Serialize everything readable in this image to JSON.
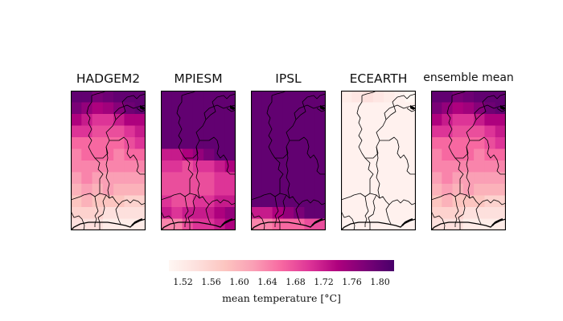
{
  "panels": [
    {
      "title": "HADGEM2",
      "levels": [
        [
          1.8,
          1.8,
          1.78,
          1.79,
          1.8,
          1.8,
          1.8
        ],
        [
          1.78,
          1.76,
          1.74,
          1.75,
          1.77,
          1.79,
          1.8
        ],
        [
          1.74,
          1.72,
          1.7,
          1.7,
          1.72,
          1.74,
          1.74
        ],
        [
          1.7,
          1.7,
          1.68,
          1.68,
          1.68,
          1.7,
          1.72
        ],
        [
          1.66,
          1.66,
          1.66,
          1.66,
          1.66,
          1.68,
          1.7
        ],
        [
          1.64,
          1.66,
          1.66,
          1.66,
          1.64,
          1.66,
          1.66
        ],
        [
          1.64,
          1.64,
          1.64,
          1.64,
          1.64,
          1.64,
          1.64
        ],
        [
          1.62,
          1.64,
          1.62,
          1.62,
          1.62,
          1.62,
          1.62
        ],
        [
          1.6,
          1.62,
          1.6,
          1.62,
          1.6,
          1.6,
          1.6
        ],
        [
          1.58,
          1.6,
          1.58,
          1.58,
          1.58,
          1.56,
          1.56
        ],
        [
          1.56,
          1.56,
          1.56,
          1.54,
          1.54,
          1.54,
          1.54
        ],
        [
          1.54,
          1.54,
          1.54,
          1.52,
          1.52,
          1.52,
          1.52
        ]
      ]
    },
    {
      "title": "MPIESM",
      "levels": [
        [
          1.8,
          1.8,
          1.8,
          1.8,
          1.8,
          1.8,
          1.8
        ],
        [
          1.8,
          1.8,
          1.8,
          1.8,
          1.8,
          1.8,
          1.8
        ],
        [
          1.8,
          1.8,
          1.8,
          1.8,
          1.8,
          1.8,
          1.8
        ],
        [
          1.8,
          1.8,
          1.8,
          1.8,
          1.8,
          1.8,
          1.8
        ],
        [
          1.8,
          1.8,
          1.8,
          1.8,
          1.8,
          1.8,
          1.8
        ],
        [
          1.72,
          1.72,
          1.74,
          1.76,
          1.78,
          1.8,
          1.8
        ],
        [
          1.7,
          1.7,
          1.68,
          1.7,
          1.7,
          1.72,
          1.74
        ],
        [
          1.68,
          1.68,
          1.68,
          1.68,
          1.68,
          1.7,
          1.7
        ],
        [
          1.68,
          1.68,
          1.68,
          1.68,
          1.68,
          1.7,
          1.7
        ],
        [
          1.7,
          1.68,
          1.68,
          1.7,
          1.7,
          1.72,
          1.72
        ],
        [
          1.72,
          1.7,
          1.72,
          1.72,
          1.72,
          1.74,
          1.76
        ],
        [
          1.64,
          1.64,
          1.68,
          1.7,
          1.7,
          1.72,
          1.74
        ]
      ]
    },
    {
      "title": "IPSL",
      "levels": [
        [
          1.8,
          1.8,
          1.8,
          1.8,
          1.8,
          1.8,
          1.8
        ],
        [
          1.8,
          1.8,
          1.8,
          1.8,
          1.8,
          1.8,
          1.8
        ],
        [
          1.8,
          1.8,
          1.8,
          1.8,
          1.8,
          1.8,
          1.8
        ],
        [
          1.8,
          1.8,
          1.8,
          1.8,
          1.8,
          1.8,
          1.8
        ],
        [
          1.8,
          1.8,
          1.8,
          1.8,
          1.8,
          1.8,
          1.8
        ],
        [
          1.8,
          1.8,
          1.8,
          1.8,
          1.8,
          1.8,
          1.8
        ],
        [
          1.8,
          1.8,
          1.8,
          1.8,
          1.8,
          1.8,
          1.8
        ],
        [
          1.8,
          1.8,
          1.8,
          1.8,
          1.8,
          1.8,
          1.8
        ],
        [
          1.8,
          1.8,
          1.8,
          1.8,
          1.8,
          1.8,
          1.8
        ],
        [
          1.8,
          1.8,
          1.8,
          1.8,
          1.8,
          1.8,
          1.8
        ],
        [
          1.72,
          1.72,
          1.74,
          1.76,
          1.78,
          1.8,
          1.8
        ],
        [
          1.64,
          1.64,
          1.66,
          1.66,
          1.66,
          1.68,
          1.68
        ]
      ]
    },
    {
      "title": "ECEARTH",
      "levels": [
        [
          1.52,
          1.53,
          1.54,
          1.53,
          1.52,
          1.51,
          1.5
        ],
        [
          1.51,
          1.51,
          1.51,
          1.51,
          1.51,
          1.51,
          1.51
        ],
        [
          1.51,
          1.51,
          1.51,
          1.51,
          1.51,
          1.51,
          1.51
        ],
        [
          1.51,
          1.51,
          1.51,
          1.51,
          1.51,
          1.51,
          1.51
        ],
        [
          1.51,
          1.51,
          1.51,
          1.51,
          1.51,
          1.51,
          1.51
        ],
        [
          1.51,
          1.51,
          1.51,
          1.51,
          1.51,
          1.51,
          1.51
        ],
        [
          1.51,
          1.51,
          1.51,
          1.51,
          1.51,
          1.51,
          1.51
        ],
        [
          1.51,
          1.51,
          1.51,
          1.51,
          1.51,
          1.51,
          1.51
        ],
        [
          1.51,
          1.51,
          1.51,
          1.51,
          1.51,
          1.51,
          1.51
        ],
        [
          1.51,
          1.51,
          1.51,
          1.51,
          1.51,
          1.51,
          1.51
        ],
        [
          1.51,
          1.51,
          1.51,
          1.51,
          1.51,
          1.51,
          1.51
        ],
        [
          1.51,
          1.51,
          1.51,
          1.51,
          1.51,
          1.51,
          1.51
        ]
      ]
    },
    {
      "title": "ensemble mean",
      "levels": [
        [
          1.8,
          1.8,
          1.78,
          1.79,
          1.8,
          1.8,
          1.8
        ],
        [
          1.78,
          1.76,
          1.74,
          1.75,
          1.77,
          1.79,
          1.8
        ],
        [
          1.74,
          1.72,
          1.7,
          1.7,
          1.72,
          1.74,
          1.74
        ],
        [
          1.7,
          1.7,
          1.68,
          1.68,
          1.68,
          1.7,
          1.72
        ],
        [
          1.66,
          1.66,
          1.66,
          1.66,
          1.66,
          1.68,
          1.7
        ],
        [
          1.64,
          1.66,
          1.66,
          1.66,
          1.64,
          1.66,
          1.66
        ],
        [
          1.64,
          1.64,
          1.64,
          1.64,
          1.64,
          1.64,
          1.64
        ],
        [
          1.62,
          1.64,
          1.62,
          1.62,
          1.62,
          1.62,
          1.62
        ],
        [
          1.6,
          1.62,
          1.6,
          1.62,
          1.6,
          1.6,
          1.6
        ],
        [
          1.58,
          1.6,
          1.58,
          1.58,
          1.58,
          1.56,
          1.56
        ],
        [
          1.56,
          1.56,
          1.56,
          1.54,
          1.54,
          1.54,
          1.54
        ],
        [
          1.54,
          1.54,
          1.54,
          1.52,
          1.52,
          1.52,
          1.52
        ]
      ]
    }
  ],
  "colorbar": {
    "vmin": 1.5,
    "vmax": 1.82,
    "ticks": [
      "1.52",
      "1.56",
      "1.60",
      "1.64",
      "1.68",
      "1.72",
      "1.76",
      "1.80"
    ],
    "label": "mean temperature [°C]",
    "colormap": [
      "#fff7f3",
      "#fde0dd",
      "#fcc5c0",
      "#fa9fb5",
      "#f768a1",
      "#dd3497",
      "#ae017e",
      "#7a0177",
      "#49006a"
    ]
  },
  "colors": {
    "border": "#000000",
    "text": "#111111"
  }
}
